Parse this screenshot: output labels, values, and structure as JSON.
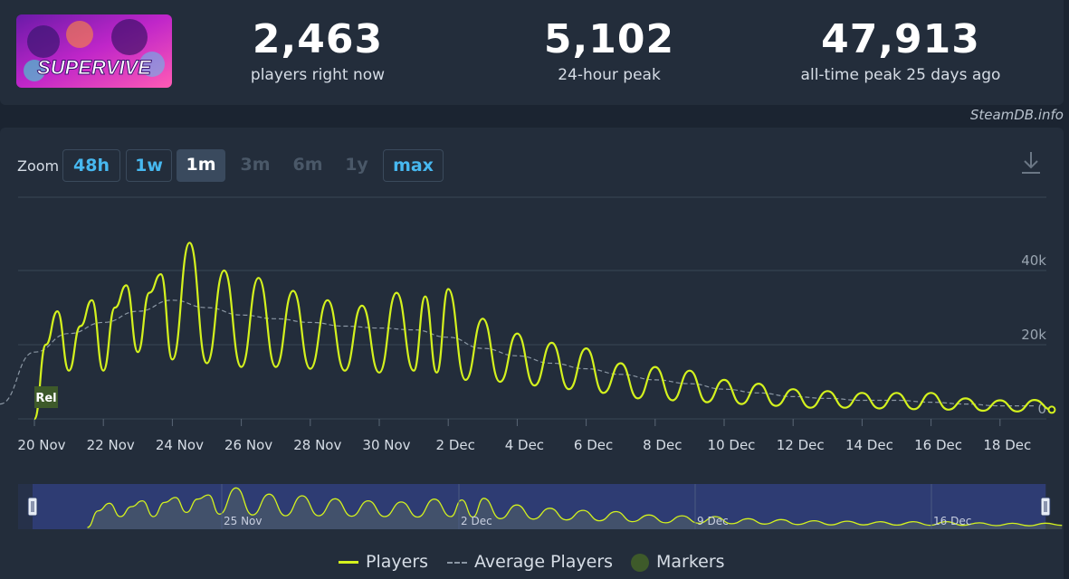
{
  "header": {
    "game_name": "SUPERVIVE",
    "stats": [
      {
        "value": "2,463",
        "label": "players right now"
      },
      {
        "value": "5,102",
        "label": "24-hour peak"
      },
      {
        "value": "47,913",
        "label": "all-time peak 25 days ago"
      }
    ]
  },
  "credit": "SteamDB.info",
  "zoom": {
    "label": "Zoom",
    "buttons": [
      {
        "label": "48h",
        "state": "active"
      },
      {
        "label": "1w",
        "state": "active"
      },
      {
        "label": "1m",
        "state": "selected"
      },
      {
        "label": "3m",
        "state": "disabled"
      },
      {
        "label": "6m",
        "state": "disabled"
      },
      {
        "label": "1y",
        "state": "disabled"
      },
      {
        "label": "max",
        "state": "active"
      }
    ]
  },
  "colors": {
    "players": "#d4f21e",
    "average": "#8a96a3",
    "marker": "#3e5a2a",
    "navigator_fill": "#303e7a"
  },
  "chart_data": {
    "type": "line",
    "x_start": "2024-11-19",
    "x_end": "2024-12-19",
    "x_tick_labels": [
      "20 Nov",
      "22 Nov",
      "24 Nov",
      "26 Nov",
      "28 Nov",
      "30 Nov",
      "2 Dec",
      "4 Dec",
      "6 Dec",
      "8 Dec",
      "10 Dec",
      "12 Dec",
      "14 Dec",
      "16 Dec",
      "18 Dec"
    ],
    "y_tick_labels": [
      "0",
      "20k",
      "40k"
    ],
    "ylim": [
      0,
      60000
    ],
    "grid": true,
    "legend_placement": "bottom",
    "markers": [
      {
        "date": "2024-11-20",
        "label": "Rel"
      }
    ],
    "navigator_labels": [
      "25 Nov",
      "2 Dec",
      "9 Dec",
      "16 Dec"
    ],
    "series": [
      {
        "name": "Players",
        "points": [
          [
            "2024-11-20",
            0
          ],
          [
            "2024-11-20",
            20000
          ],
          [
            "2024-11-20",
            29000
          ],
          [
            "2024-11-21",
            13000
          ],
          [
            "2024-11-21",
            25000
          ],
          [
            "2024-11-21",
            32000
          ],
          [
            "2024-11-22",
            13000
          ],
          [
            "2024-11-22",
            30000
          ],
          [
            "2024-11-22",
            36000
          ],
          [
            "2024-11-23",
            18000
          ],
          [
            "2024-11-23",
            34000
          ],
          [
            "2024-11-23",
            39000
          ],
          [
            "2024-11-24",
            16000
          ],
          [
            "2024-11-24",
            47500
          ],
          [
            "2024-11-25",
            15000
          ],
          [
            "2024-11-25",
            40000
          ],
          [
            "2024-11-26",
            14000
          ],
          [
            "2024-11-26",
            38000
          ],
          [
            "2024-11-27",
            14000
          ],
          [
            "2024-11-27",
            34500
          ],
          [
            "2024-11-28",
            13500
          ],
          [
            "2024-11-28",
            32000
          ],
          [
            "2024-11-29",
            13000
          ],
          [
            "2024-11-29",
            30500
          ],
          [
            "2024-11-30",
            12500
          ],
          [
            "2024-11-30",
            34000
          ],
          [
            "2024-12-01",
            13000
          ],
          [
            "2024-12-01",
            33000
          ],
          [
            "2024-12-01",
            12500
          ],
          [
            "2024-12-02",
            35000
          ],
          [
            "2024-12-02",
            10500
          ],
          [
            "2024-12-03",
            27000
          ],
          [
            "2024-12-03",
            10000
          ],
          [
            "2024-12-04",
            23000
          ],
          [
            "2024-12-04",
            9000
          ],
          [
            "2024-12-05",
            20500
          ],
          [
            "2024-12-05",
            8000
          ],
          [
            "2024-12-06",
            19000
          ],
          [
            "2024-12-06",
            7000
          ],
          [
            "2024-12-07",
            15000
          ],
          [
            "2024-12-07",
            5500
          ],
          [
            "2024-12-08",
            14000
          ],
          [
            "2024-12-08",
            5000
          ],
          [
            "2024-12-09",
            13000
          ],
          [
            "2024-12-09",
            4500
          ],
          [
            "2024-12-10",
            10500
          ],
          [
            "2024-12-10",
            4000
          ],
          [
            "2024-12-11",
            9500
          ],
          [
            "2024-12-11",
            3500
          ],
          [
            "2024-12-12",
            8000
          ],
          [
            "2024-12-12",
            3000
          ],
          [
            "2024-12-13",
            7500
          ],
          [
            "2024-12-13",
            3000
          ],
          [
            "2024-12-14",
            7000
          ],
          [
            "2024-12-14",
            2800
          ],
          [
            "2024-12-15",
            7000
          ],
          [
            "2024-12-15",
            2600
          ],
          [
            "2024-12-16",
            7000
          ],
          [
            "2024-12-16",
            2500
          ],
          [
            "2024-12-17",
            5500
          ],
          [
            "2024-12-17",
            2200
          ],
          [
            "2024-12-18",
            5000
          ],
          [
            "2024-12-18",
            2000
          ],
          [
            "2024-12-19",
            5102
          ],
          [
            "2024-12-19",
            2463
          ]
        ]
      },
      {
        "name": "Average Players",
        "points": [
          [
            "2024-11-19",
            4000
          ],
          [
            "2024-11-20",
            18000
          ],
          [
            "2024-11-21",
            23000
          ],
          [
            "2024-11-22",
            26000
          ],
          [
            "2024-11-23",
            29000
          ],
          [
            "2024-11-24",
            32000
          ],
          [
            "2024-11-25",
            30000
          ],
          [
            "2024-11-26",
            28000
          ],
          [
            "2024-11-27",
            27000
          ],
          [
            "2024-11-28",
            26000
          ],
          [
            "2024-11-29",
            25000
          ],
          [
            "2024-11-30",
            24500
          ],
          [
            "2024-12-01",
            24000
          ],
          [
            "2024-12-02",
            22000
          ],
          [
            "2024-12-03",
            19000
          ],
          [
            "2024-12-04",
            17000
          ],
          [
            "2024-12-05",
            15000
          ],
          [
            "2024-12-06",
            13500
          ],
          [
            "2024-12-07",
            12000
          ],
          [
            "2024-12-08",
            10500
          ],
          [
            "2024-12-09",
            9500
          ],
          [
            "2024-12-10",
            8000
          ],
          [
            "2024-12-11",
            7000
          ],
          [
            "2024-12-12",
            6000
          ],
          [
            "2024-12-13",
            5500
          ],
          [
            "2024-12-14",
            5000
          ],
          [
            "2024-12-15",
            5000
          ],
          [
            "2024-12-16",
            4500
          ],
          [
            "2024-12-17",
            4000
          ],
          [
            "2024-12-18",
            3500
          ],
          [
            "2024-12-19",
            3500
          ]
        ]
      }
    ]
  },
  "legend": {
    "players": "Players",
    "average": "Average Players",
    "markers": "Markers"
  }
}
